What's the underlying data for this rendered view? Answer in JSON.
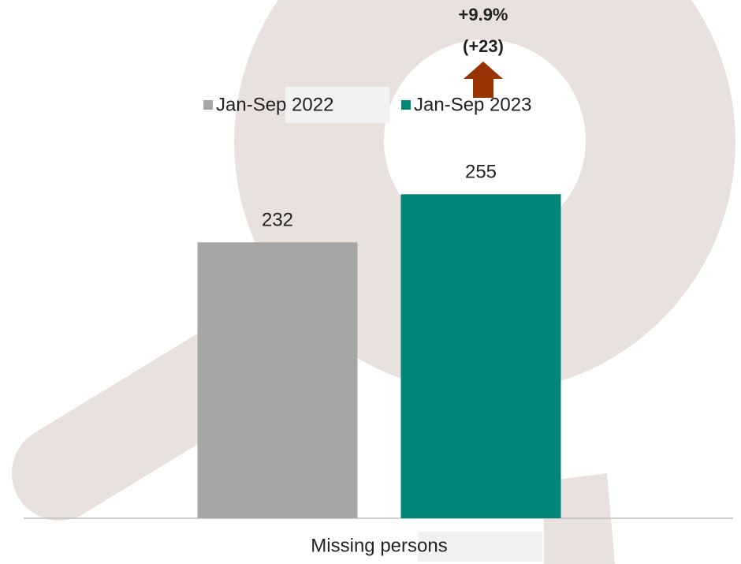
{
  "chart_data": {
    "type": "bar",
    "categories": [
      "Missing persons"
    ],
    "series": [
      {
        "name": "Jan-Sep 2022",
        "color": "#a6a6a6",
        "values": [
          232
        ]
      },
      {
        "name": "Jan-Sep 2023",
        "color": "#00877a",
        "values": [
          255
        ]
      }
    ],
    "ylim": [
      100,
      300
    ],
    "legend": "top",
    "annotations": [
      "+9.9%",
      "(+23)"
    ],
    "annotation_color": "#993300"
  }
}
